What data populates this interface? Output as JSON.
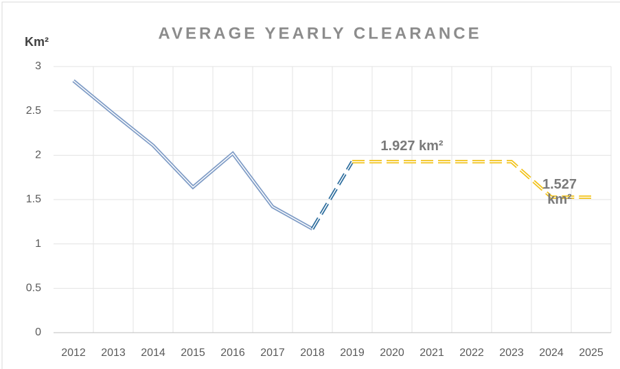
{
  "chart_data": {
    "type": "line",
    "title": "AVERAGE YEARLY CLEARANCE",
    "y_label": "Km²",
    "categories": [
      "2012",
      "2013",
      "2014",
      "2015",
      "2016",
      "2017",
      "2018",
      "2019",
      "2020",
      "2021",
      "2022",
      "2023",
      "2024",
      "2025"
    ],
    "series": [
      {
        "color": "#7f9cc6",
        "dash": false,
        "values": [
          2.84,
          2.47,
          2.11,
          1.64,
          2.02,
          1.42,
          1.17,
          null,
          null,
          null,
          null,
          null,
          null,
          null
        ]
      },
      {
        "color": "#2e6e9e",
        "dash": true,
        "values": [
          null,
          null,
          null,
          null,
          null,
          null,
          1.17,
          1.927,
          null,
          null,
          null,
          null,
          null,
          null
        ]
      },
      {
        "color": "#f2c218",
        "dash": true,
        "values": [
          null,
          null,
          null,
          null,
          null,
          null,
          null,
          1.927,
          1.927,
          1.927,
          1.927,
          1.927,
          1.527,
          1.527
        ],
        "value_labels": [
          null,
          null,
          null,
          null,
          null,
          null,
          null,
          null,
          "1.927 km²",
          null,
          null,
          null,
          "1.527 km²",
          null
        ]
      }
    ],
    "ylim": [
      0,
      3
    ],
    "yticks": [
      0,
      0.5,
      1,
      1.5,
      2,
      2.5,
      3
    ],
    "grid": true
  }
}
